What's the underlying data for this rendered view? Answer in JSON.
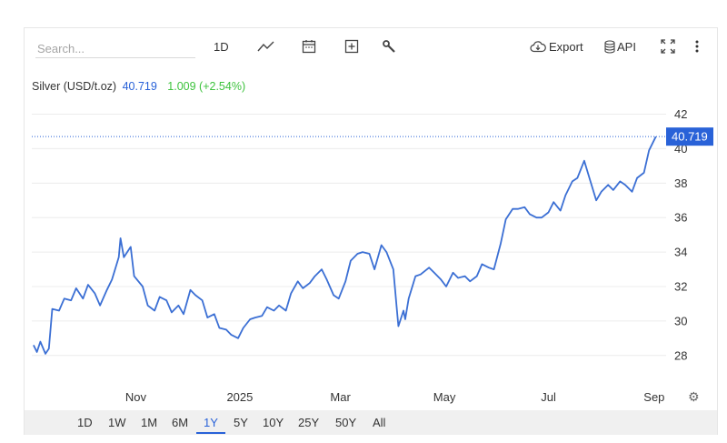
{
  "toolbar": {
    "search_placeholder": "Search...",
    "interval_label": "1D",
    "export_label": "Export",
    "api_label": "API"
  },
  "legend": {
    "name": "Silver (USD/t.oz)",
    "price": "40.719",
    "change": "1.009 (+2.54%)"
  },
  "colors": {
    "line": "#3b6fd4",
    "accent": "#2962d8",
    "positive": "#3ec33e",
    "grid": "#ececec"
  },
  "chart_data": {
    "type": "line",
    "title": "Silver (USD/t.oz)",
    "xlabel": "",
    "ylabel": "",
    "x_ticks": [
      "Nov",
      "2025",
      "Mar",
      "May",
      "Jul",
      "Sep"
    ],
    "y_ticks": [
      28,
      30,
      32,
      34,
      36,
      38,
      40,
      42
    ],
    "ylim": [
      26.3,
      43.4
    ],
    "xlim": [
      "2024-09-01",
      "2025-09-08"
    ],
    "grid": true,
    "last_price_label": "40.719",
    "series": [
      {
        "name": "Silver",
        "x": [
          "2024-09-02",
          "2024-09-04",
          "2024-09-06",
          "2024-09-09",
          "2024-09-11",
          "2024-09-13",
          "2024-09-17",
          "2024-09-20",
          "2024-09-24",
          "2024-09-27",
          "2024-10-01",
          "2024-10-04",
          "2024-10-08",
          "2024-10-11",
          "2024-10-15",
          "2024-10-18",
          "2024-10-22",
          "2024-10-23",
          "2024-10-25",
          "2024-10-29",
          "2024-10-31",
          "2024-11-05",
          "2024-11-08",
          "2024-11-12",
          "2024-11-15",
          "2024-11-19",
          "2024-11-22",
          "2024-11-26",
          "2024-11-29",
          "2024-12-03",
          "2024-12-06",
          "2024-12-10",
          "2024-12-13",
          "2024-12-17",
          "2024-12-20",
          "2024-12-24",
          "2024-12-27",
          "2024-12-31",
          "2025-01-03",
          "2025-01-07",
          "2025-01-10",
          "2025-01-14",
          "2025-01-17",
          "2025-01-21",
          "2025-01-24",
          "2025-01-28",
          "2025-01-31",
          "2025-02-04",
          "2025-02-07",
          "2025-02-11",
          "2025-02-14",
          "2025-02-18",
          "2025-02-21",
          "2025-02-25",
          "2025-02-28",
          "2025-03-04",
          "2025-03-07",
          "2025-03-11",
          "2025-03-14",
          "2025-03-18",
          "2025-03-21",
          "2025-03-25",
          "2025-03-28",
          "2025-04-01",
          "2025-04-03",
          "2025-04-04",
          "2025-04-07",
          "2025-04-08",
          "2025-04-10",
          "2025-04-14",
          "2025-04-17",
          "2025-04-22",
          "2025-04-25",
          "2025-04-29",
          "2025-05-02",
          "2025-05-06",
          "2025-05-09",
          "2025-05-13",
          "2025-05-16",
          "2025-05-20",
          "2025-05-23",
          "2025-05-27",
          "2025-05-30",
          "2025-06-03",
          "2025-06-06",
          "2025-06-10",
          "2025-06-13",
          "2025-06-17",
          "2025-06-20",
          "2025-06-24",
          "2025-06-27",
          "2025-07-01",
          "2025-07-04",
          "2025-07-08",
          "2025-07-11",
          "2025-07-15",
          "2025-07-18",
          "2025-07-22",
          "2025-07-25",
          "2025-07-29",
          "2025-08-01",
          "2025-08-05",
          "2025-08-08",
          "2025-08-12",
          "2025-08-15",
          "2025-08-19",
          "2025-08-22",
          "2025-08-26",
          "2025-08-29",
          "2025-09-02"
        ],
        "y": [
          28.6,
          28.2,
          28.8,
          28.1,
          28.4,
          30.7,
          30.6,
          31.3,
          31.2,
          31.9,
          31.3,
          32.1,
          31.6,
          30.9,
          31.8,
          32.4,
          33.7,
          34.8,
          33.7,
          34.3,
          32.6,
          32.0,
          30.9,
          30.6,
          31.4,
          31.2,
          30.5,
          30.9,
          30.4,
          31.8,
          31.5,
          31.2,
          30.2,
          30.4,
          29.6,
          29.5,
          29.2,
          29.0,
          29.6,
          30.1,
          30.2,
          30.3,
          30.8,
          30.6,
          30.9,
          30.6,
          31.6,
          32.3,
          31.9,
          32.2,
          32.6,
          33.0,
          32.4,
          31.5,
          31.3,
          32.3,
          33.5,
          33.9,
          34.0,
          33.9,
          33.0,
          34.4,
          34.0,
          33.0,
          30.8,
          29.7,
          30.6,
          30.1,
          31.3,
          32.6,
          32.7,
          33.1,
          32.8,
          32.4,
          32.0,
          32.8,
          32.5,
          32.6,
          32.3,
          32.6,
          33.3,
          33.1,
          33.0,
          34.5,
          35.9,
          36.5,
          36.5,
          36.6,
          36.2,
          36.0,
          36.0,
          36.3,
          36.9,
          36.4,
          37.3,
          38.1,
          38.3,
          39.3,
          38.3,
          37.0,
          37.5,
          37.9,
          37.6,
          38.1,
          37.9,
          37.5,
          38.3,
          38.6,
          39.9,
          40.7
        ]
      }
    ]
  },
  "ranges": [
    {
      "label": "1D",
      "active": false
    },
    {
      "label": "1W",
      "active": false
    },
    {
      "label": "1M",
      "active": false
    },
    {
      "label": "6M",
      "active": false
    },
    {
      "label": "1Y",
      "active": true
    },
    {
      "label": "5Y",
      "active": false
    },
    {
      "label": "10Y",
      "active": false
    },
    {
      "label": "25Y",
      "active": false
    },
    {
      "label": "50Y",
      "active": false
    },
    {
      "label": "All",
      "active": false
    }
  ]
}
